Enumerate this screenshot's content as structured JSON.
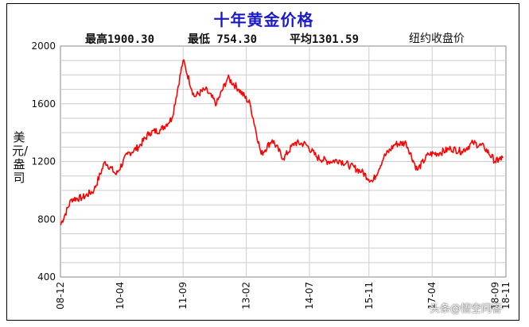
{
  "title": "十年黄金价格",
  "stats": {
    "high": "最高1900.30",
    "low": "最低 754.30",
    "avg": "平均1301.59"
  },
  "subtitle": "纽约收盘价",
  "watermark": "头条@悟空问答",
  "chart_data": {
    "type": "line",
    "title": "十年黄金价格",
    "ylabel": "美元/盎司",
    "xlabel": "",
    "ylim": [
      400,
      2000
    ],
    "yticks": [
      400,
      800,
      1200,
      1600,
      2000
    ],
    "xtick_labels": [
      "08-12",
      "10-04",
      "11-09",
      "13-02",
      "14-07",
      "15-11",
      "17-04",
      "18-09",
      "18-11"
    ],
    "grid": true,
    "line_color": "#ff0000",
    "series": [
      {
        "x": [
          "08-12",
          "09-03",
          "09-06",
          "09-09",
          "09-12",
          "10-03",
          "10-06",
          "10-09",
          "10-12",
          "11-03",
          "11-06",
          "11-09",
          "11-12",
          "12-03",
          "12-06",
          "12-09",
          "12-12",
          "13-03",
          "13-06",
          "13-09",
          "13-12",
          "14-03",
          "14-06",
          "14-09",
          "14-12",
          "15-03",
          "15-06",
          "15-09",
          "15-12",
          "16-03",
          "16-06",
          "16-09",
          "16-12",
          "17-03",
          "17-06",
          "17-09",
          "17-12",
          "18-03",
          "18-06",
          "18-09",
          "18-11"
        ],
        "values": [
          760,
          940,
          950,
          1000,
          1200,
          1110,
          1250,
          1300,
          1400,
          1420,
          1500,
          1900,
          1650,
          1700,
          1600,
          1780,
          1700,
          1600,
          1250,
          1350,
          1220,
          1330,
          1320,
          1230,
          1200,
          1210,
          1170,
          1130,
          1060,
          1230,
          1320,
          1330,
          1140,
          1250,
          1260,
          1290,
          1270,
          1330,
          1300,
          1200,
          1225
        ]
      }
    ]
  }
}
